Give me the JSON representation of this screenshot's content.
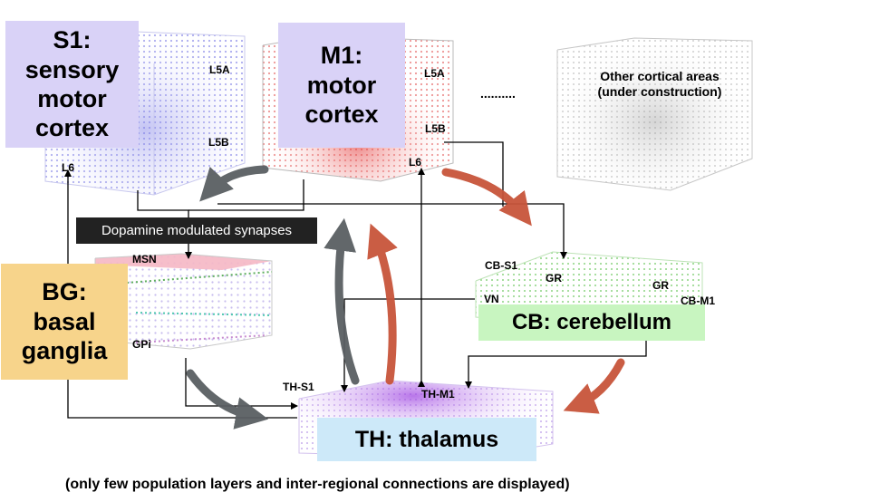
{
  "regions": {
    "s1": {
      "line1": "S1:",
      "line2": "sensory",
      "line3": "motor",
      "line4": "cortex",
      "color": "#d9d2f7"
    },
    "m1": {
      "line1": "M1:",
      "line2": "motor",
      "line3": "cortex",
      "color": "#d9d2f7"
    },
    "other": {
      "line1": "Other cortical areas",
      "line2": "(under construction)"
    },
    "bg": {
      "line1": "BG:",
      "line2": "basal",
      "line3": "ganglia",
      "color": "#f7d48b"
    },
    "cb": {
      "label": "CB: cerebellum",
      "color": "#c8f5c0"
    },
    "th": {
      "label": "TH: thalamus",
      "color": "#cde9f9"
    }
  },
  "ellipsis": "..........",
  "dopamine_label": "Dopamine modulated synapses",
  "layer_labels": {
    "s1_l5a": "L5A",
    "s1_l5b": "L5B",
    "s1_l6": "L6",
    "m1_l5a": "L5A",
    "m1_l5b": "L5B",
    "m1_l6": "L6",
    "msn": "MSN",
    "gpi": "GPi",
    "cb_s1": "CB-S1",
    "gr_left": "GR",
    "gr_right": "GR",
    "cb_m1": "CB-M1",
    "vn": "VN",
    "th_s1": "TH-S1",
    "th_m1": "TH-M1"
  },
  "caption": "(only few population layers and inter-regional connections are displayed)",
  "colors": {
    "grey_arrow": "#5a5f63",
    "red_arrow": "#c8553b",
    "line": "#000000"
  }
}
